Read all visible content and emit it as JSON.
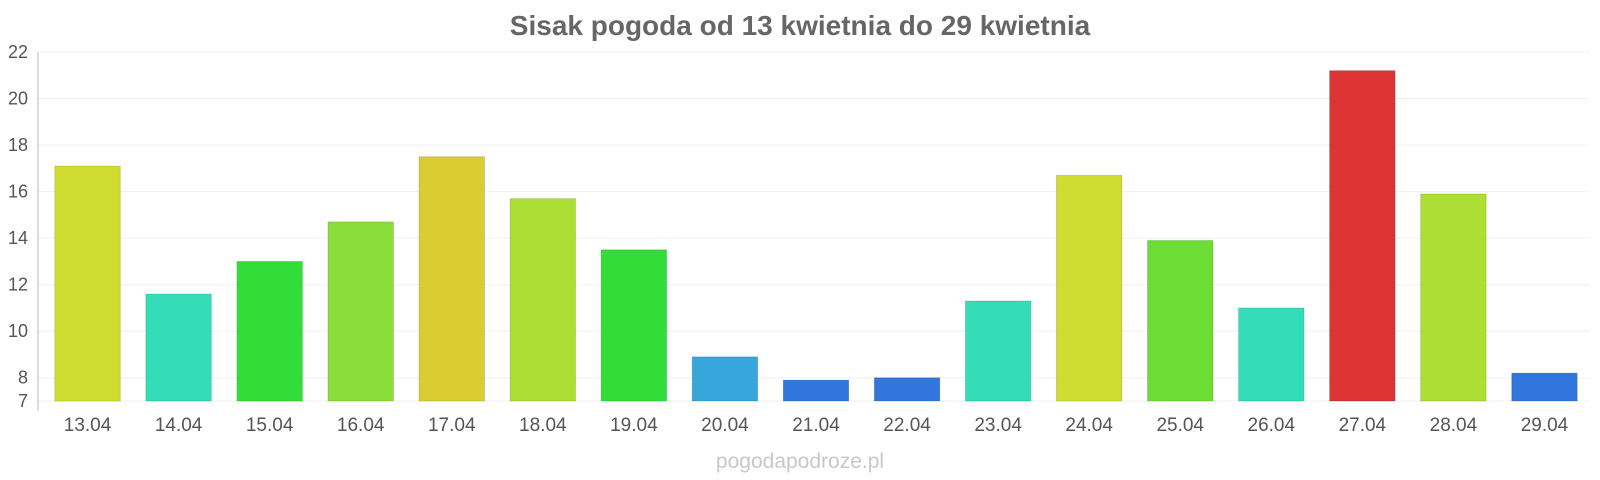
{
  "chart_data": {
    "type": "bar",
    "title": "Sisak pogoda od 13 kwietnia do 29 kwietnia",
    "xlabel": "",
    "ylabel": "",
    "categories": [
      "13.04",
      "14.04",
      "15.04",
      "16.04",
      "17.04",
      "18.04",
      "19.04",
      "20.04",
      "21.04",
      "22.04",
      "23.04",
      "24.04",
      "25.04",
      "26.04",
      "27.04",
      "28.04",
      "29.04"
    ],
    "values": [
      17.1,
      11.6,
      13.0,
      14.7,
      17.5,
      15.7,
      13.5,
      8.9,
      7.9,
      8.0,
      11.3,
      16.7,
      13.9,
      11.0,
      21.2,
      15.9,
      8.2
    ],
    "bar_colors": [
      "#cfdd33",
      "#35dcb8",
      "#32dd3a",
      "#8add3a",
      "#dacc33",
      "#acde35",
      "#32dd3a",
      "#36a6db",
      "#3076dc",
      "#3076dc",
      "#35dcb8",
      "#cfdd33",
      "#6bdd35",
      "#35dcb8",
      "#dc3433",
      "#acde35",
      "#3076dc"
    ],
    "ylim": [
      7,
      22
    ],
    "yticks": [
      7,
      8,
      10,
      12,
      14,
      16,
      18,
      20,
      22
    ],
    "grid": true,
    "legend": "none"
  },
  "watermark": "pogodapodroze.pl"
}
